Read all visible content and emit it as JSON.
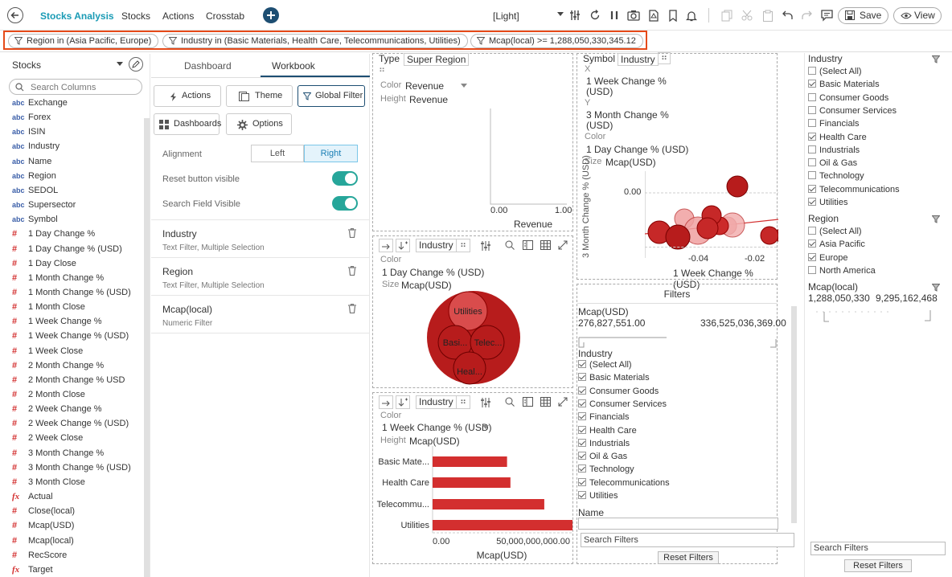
{
  "toolbar": {
    "app_name": "Stocks Analysis",
    "tabs": [
      "Stocks",
      "Actions",
      "Crosstab"
    ],
    "theme": "[Light]",
    "save_label": "Save",
    "view_label": "View",
    "accent": "#1a9bb5"
  },
  "filters": [
    "Region in (Asia Pacific, Europe)",
    "Industry in (Basic Materials, Health Care, Telecommunications, Utilities)",
    "Mcap(local) >= 1,288,050,330,345.12"
  ],
  "left_panel": {
    "source": "Stocks",
    "search_placeholder": "Search Columns",
    "columns": [
      {
        "type": "abc",
        "name": "Exchange"
      },
      {
        "type": "abc",
        "name": "Forex"
      },
      {
        "type": "abc",
        "name": "ISIN"
      },
      {
        "type": "abc",
        "name": "Industry"
      },
      {
        "type": "abc",
        "name": "Name"
      },
      {
        "type": "abc",
        "name": "Region"
      },
      {
        "type": "abc",
        "name": "SEDOL"
      },
      {
        "type": "abc",
        "name": "Supersector"
      },
      {
        "type": "abc",
        "name": "Symbol"
      },
      {
        "type": "#",
        "name": "1 Day Change %"
      },
      {
        "type": "#",
        "name": "1 Day Change % (USD)"
      },
      {
        "type": "#",
        "name": "1 Day Close"
      },
      {
        "type": "#",
        "name": "1 Month Change %"
      },
      {
        "type": "#",
        "name": "1 Month Change % (USD)"
      },
      {
        "type": "#",
        "name": "1 Month Close"
      },
      {
        "type": "#",
        "name": "1 Week Change %"
      },
      {
        "type": "#",
        "name": "1 Week Change % (USD)"
      },
      {
        "type": "#",
        "name": "1 Week Close"
      },
      {
        "type": "#",
        "name": "2 Month Change %"
      },
      {
        "type": "#",
        "name": "2 Month Change % USD"
      },
      {
        "type": "#",
        "name": "2 Month Close"
      },
      {
        "type": "#",
        "name": "2 Week Change %"
      },
      {
        "type": "#",
        "name": "2 Week Change % (USD)"
      },
      {
        "type": "#",
        "name": "2 Week Close"
      },
      {
        "type": "#",
        "name": "3 Month Change %"
      },
      {
        "type": "#",
        "name": "3 Month Change % (USD)"
      },
      {
        "type": "#",
        "name": "3 Month Close"
      },
      {
        "type": "fx",
        "name": "Actual"
      },
      {
        "type": "#",
        "name": "Close(local)"
      },
      {
        "type": "#",
        "name": "Mcap(USD)"
      },
      {
        "type": "#",
        "name": "Mcap(local)"
      },
      {
        "type": "#",
        "name": "RecScore"
      },
      {
        "type": "fx",
        "name": "Target"
      }
    ]
  },
  "workbook": {
    "tabs": [
      "Dashboard",
      "Workbook"
    ],
    "buttons": {
      "actions": "Actions",
      "theme": "Theme",
      "global_filter": "Global Filter",
      "dashboards": "Dashboards",
      "options": "Options"
    },
    "alignment_label": "Alignment",
    "align_left": "Left",
    "align_right": "Right",
    "reset_visible_label": "Reset button visible",
    "search_visible_label": "Search Field Visible",
    "filter_items": [
      {
        "title": "Industry",
        "sub": "Text Filter, Multiple Selection"
      },
      {
        "title": "Region",
        "sub": "Text Filter, Multiple Selection"
      },
      {
        "title": "Mcap(local)",
        "sub": "Numeric Filter"
      }
    ]
  },
  "pane_tl": {
    "type_label": "Type",
    "type_value": "Super Region",
    "color_label": "Color",
    "color_value": "Revenue",
    "height_label": "Height",
    "height_value": "Revenue",
    "x_ticks": [
      "0.00",
      "1.00"
    ],
    "x_label": "Revenue"
  },
  "pane_bubble": {
    "group_label": "Industry",
    "color_label": "Color",
    "color_value": "1 Day Change % (USD)",
    "size_label": "Size",
    "size_value": "Mcap(USD)",
    "bubbles": [
      "Utilities",
      "Basi...",
      "Telec...",
      "Heal..."
    ]
  },
  "pane_scatter": {
    "symbol_label": "Symbol",
    "symbol_value": "Industry",
    "x_label": "X",
    "x_value": "1 Week Change % (USD)",
    "y_label": "Y",
    "y_value": "3 Month Change % (USD)",
    "color_label": "Color",
    "color_value": "1 Day Change % (USD)",
    "size_label": "Size",
    "size_value": "Mcap(USD)",
    "y_tick": "0.00",
    "x_ticks": [
      "-0.04",
      "-0.02"
    ],
    "xaxis_title": "1 Week Change % (USD)",
    "yaxis_title": "3 Month Change % (USD)"
  },
  "pane_bar": {
    "group_label": "Industry",
    "color_label": "Color",
    "color_value": "1 Week Change % (USD)",
    "height_label": "Height",
    "height_value": "Mcap(USD)",
    "x_ticks": [
      "0.00",
      "50,000,000,000.00"
    ],
    "x_label": "Mcap(USD)"
  },
  "chart_data": {
    "type": "bar",
    "orientation": "horizontal",
    "categories": [
      "Basic Mate...",
      "Health Care",
      "Telecommu...",
      "Utilities"
    ],
    "values": [
      33000000000,
      34500000000,
      49500000000,
      62000000000
    ],
    "xlim": [
      0,
      62000000000
    ],
    "xlabel": "Mcap(USD)",
    "color": "#d32f2f"
  },
  "filters_pane": {
    "title": "Filters",
    "mcap_label": "Mcap(USD)",
    "mcap_min": "276,827,551.00",
    "mcap_max": "336,525,036,369.00",
    "industry_label": "Industry",
    "industry_items": [
      {
        "label": "(Select All)",
        "checked": true
      },
      {
        "label": "Basic Materials",
        "checked": true
      },
      {
        "label": "Consumer Goods",
        "checked": true
      },
      {
        "label": "Consumer Services",
        "checked": true
      },
      {
        "label": "Financials",
        "checked": true
      },
      {
        "label": "Health Care",
        "checked": true
      },
      {
        "label": "Industrials",
        "checked": true
      },
      {
        "label": "Oil & Gas",
        "checked": true
      },
      {
        "label": "Technology",
        "checked": true
      },
      {
        "label": "Telecommunications",
        "checked": true
      },
      {
        "label": "Utilities",
        "checked": true
      }
    ],
    "name_label": "Name",
    "search_placeholder": "Search Filters",
    "reset_label": "Reset Filters"
  },
  "right_filters": {
    "industry_label": "Industry",
    "industry_items": [
      {
        "label": "(Select All)",
        "checked": false
      },
      {
        "label": "Basic Materials",
        "checked": true
      },
      {
        "label": "Consumer Goods",
        "checked": false
      },
      {
        "label": "Consumer Services",
        "checked": false
      },
      {
        "label": "Financials",
        "checked": false
      },
      {
        "label": "Health Care",
        "checked": true
      },
      {
        "label": "Industrials",
        "checked": false
      },
      {
        "label": "Oil & Gas",
        "checked": false
      },
      {
        "label": "Technology",
        "checked": false
      },
      {
        "label": "Telecommunications",
        "checked": true
      },
      {
        "label": "Utilities",
        "checked": true
      }
    ],
    "region_label": "Region",
    "region_items": [
      {
        "label": "(Select All)",
        "checked": false
      },
      {
        "label": "Asia Pacific",
        "checked": true
      },
      {
        "label": "Europe",
        "checked": true
      },
      {
        "label": "North America",
        "checked": false
      }
    ],
    "mcap_label": "Mcap(local)",
    "mcap_min": "1,288,050,330",
    "mcap_max": "9,295,162,468",
    "search_placeholder": "Search Filters",
    "reset_label": "Reset Filters"
  }
}
